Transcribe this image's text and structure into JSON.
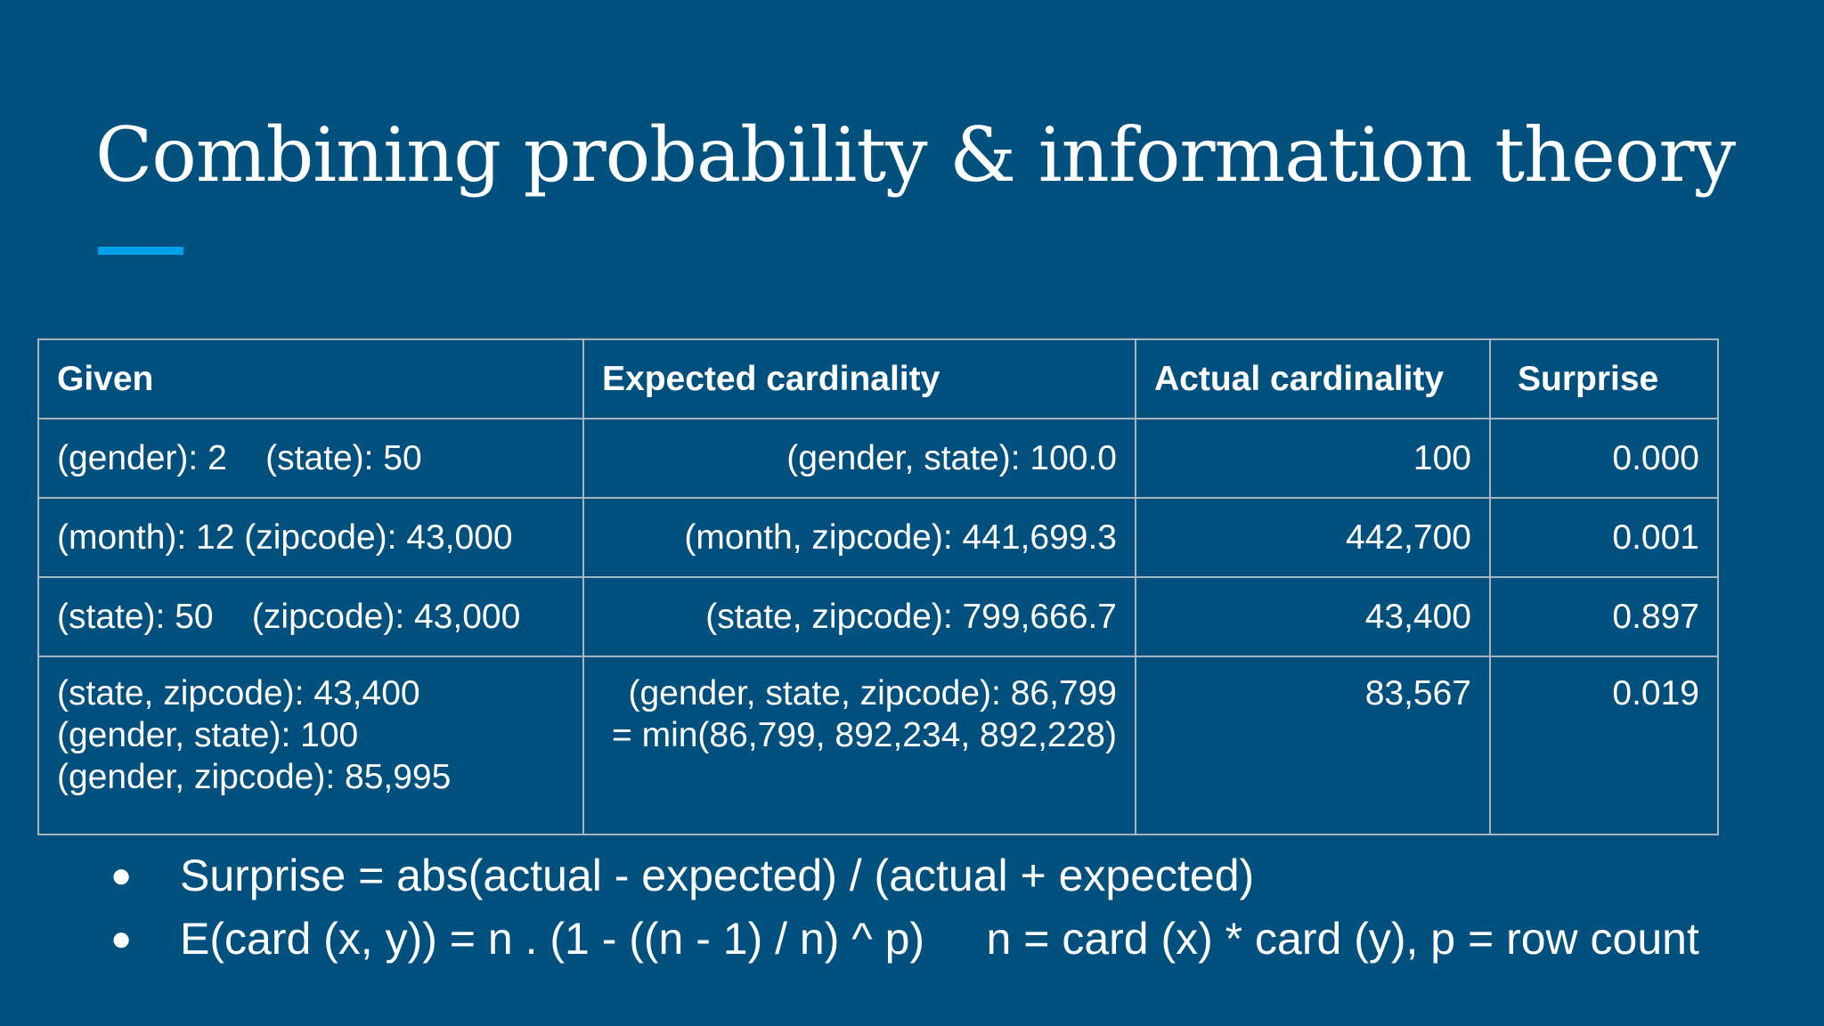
{
  "slide": {
    "title": "Combining probability & information theory",
    "accent_color": "#00a0ea",
    "background_color": "#01507d"
  },
  "table": {
    "headers": [
      "Given",
      "Expected cardinality",
      "Actual cardinality",
      "Surprise"
    ],
    "rows": [
      {
        "given": "(gender): 2    (state): 50",
        "expected": "(gender, state): 100.0",
        "actual": "100",
        "surprise": "0.000"
      },
      {
        "given": "(month): 12 (zipcode): 43,000",
        "expected": "(month, zipcode): 441,699.3",
        "actual": "442,700",
        "surprise": "0.001"
      },
      {
        "given": "(state): 50    (zipcode): 43,000",
        "expected": "(state, zipcode): 799,666.7",
        "actual": "43,400",
        "surprise": "0.897"
      },
      {
        "given": "(state, zipcode): 43,400\n(gender, state): 100\n(gender, zipcode): 85,995",
        "expected": "(gender, state, zipcode): 86,799\n= min(86,799, 892,234, 892,228)",
        "actual": "83,567",
        "surprise": "0.019"
      }
    ]
  },
  "bullets": [
    {
      "marker": "●",
      "text": "Surprise = abs(actual - expected) / (actual + expected)"
    },
    {
      "marker": "●",
      "text": "E(card (x, y)) = n . (1 - ((n - 1) / n) ^ p)     n = card (x) * card (y), p = row count"
    }
  ]
}
